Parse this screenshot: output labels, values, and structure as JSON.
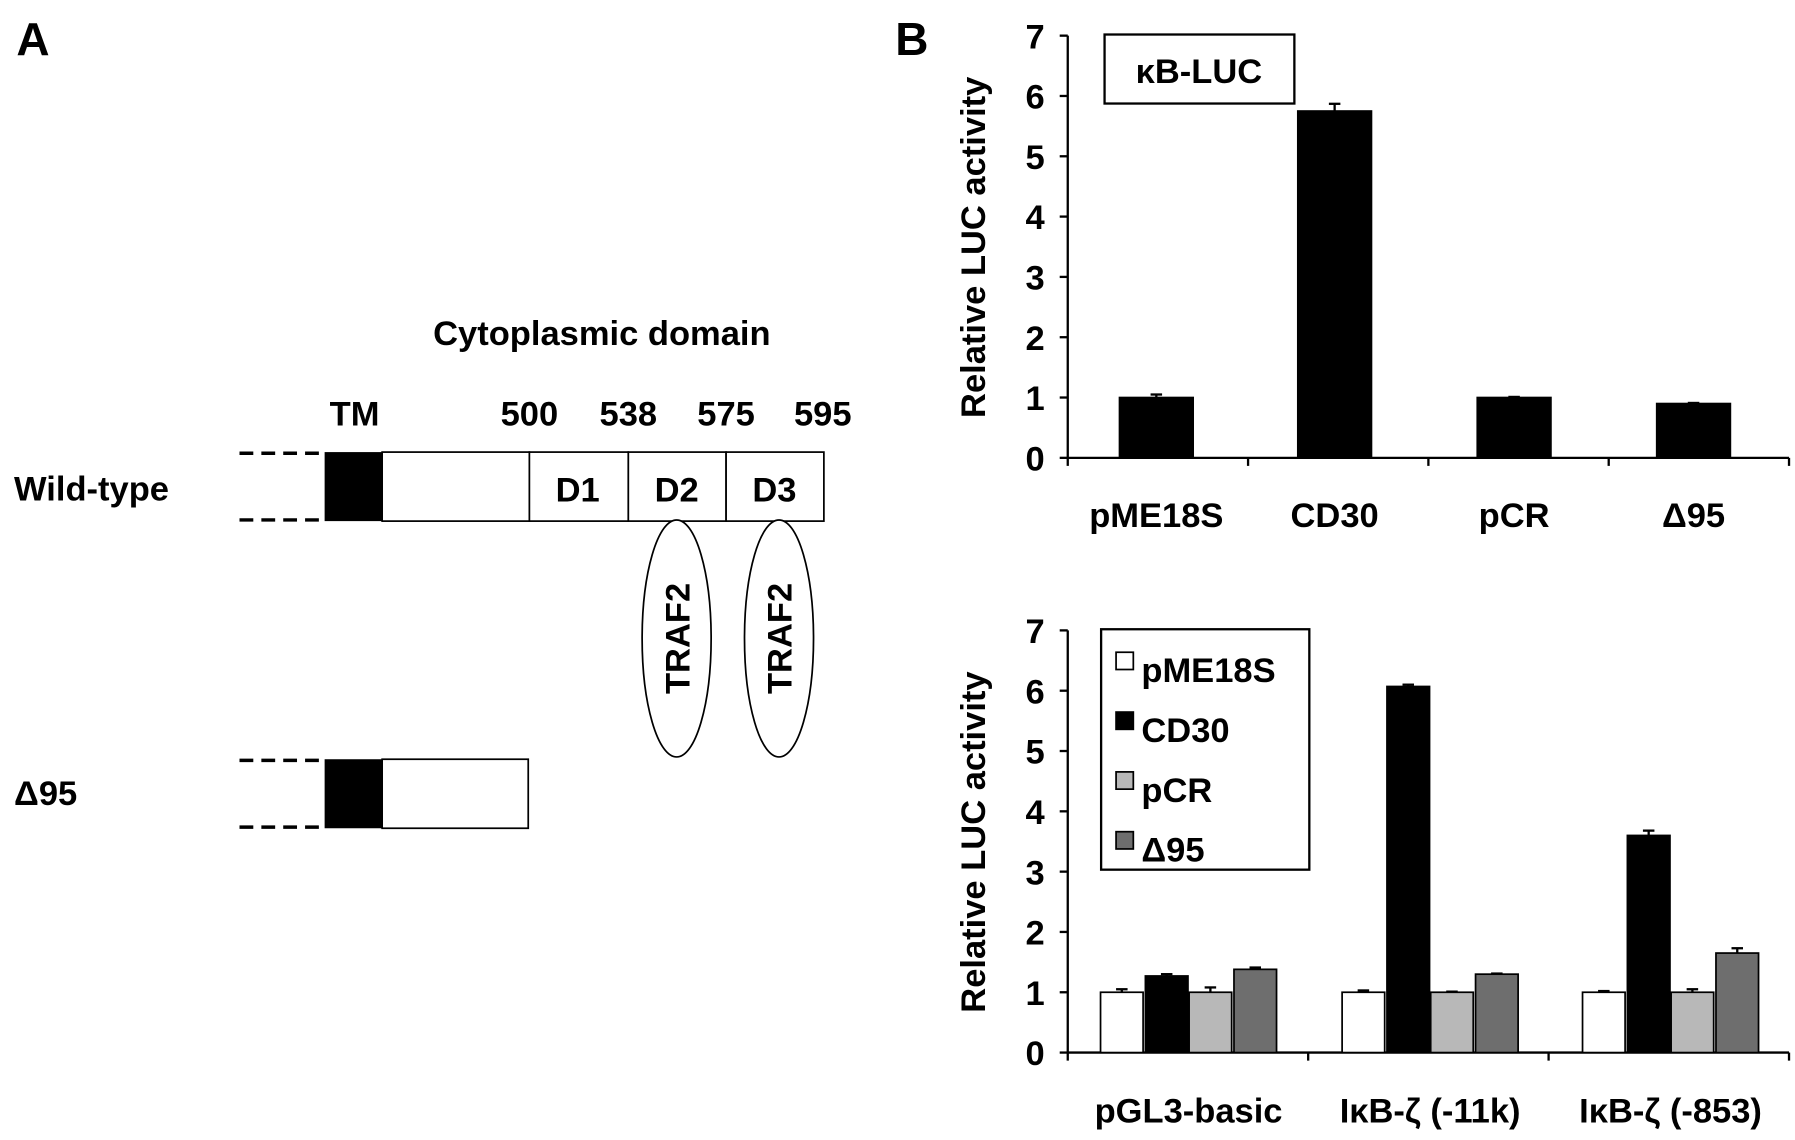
{
  "panel_a": {
    "label": "A",
    "heading": "Cytoplasmic domain",
    "positions": {
      "tm": "TM",
      "p500": "500",
      "p538": "538",
      "p575": "575",
      "p595": "595"
    },
    "wild_type": {
      "label": "Wild-type",
      "domains": [
        "D1",
        "D2",
        "D3"
      ],
      "binders": [
        "TRAF2",
        "TRAF2"
      ]
    },
    "delta95": {
      "label": "Δ95"
    }
  },
  "panel_b": {
    "label": "B"
  },
  "chart_data": [
    {
      "type": "bar",
      "title": "κB-LUC",
      "ylabel": "Relative LUC activity",
      "xlabel": "",
      "ylim": [
        0,
        7
      ],
      "yticks": [
        "0",
        "1",
        "2",
        "3",
        "4",
        "5",
        "6",
        "7"
      ],
      "categories": [
        "pME18S",
        "CD30",
        "pCR",
        "Δ95"
      ],
      "values": [
        1.0,
        5.75,
        1.0,
        0.9
      ],
      "errors": [
        0.05,
        0.12,
        0.01,
        0.01
      ],
      "color": "#000000"
    },
    {
      "type": "bar",
      "ylabel": "Relative LUC activity",
      "xlabel": "",
      "ylim": [
        0,
        7
      ],
      "yticks": [
        "0",
        "1",
        "2",
        "3",
        "4",
        "5",
        "6",
        "7"
      ],
      "categories": [
        "pGL3-basic",
        "IκB-ζ (-11k)",
        "IκB-ζ (-853)"
      ],
      "legend_position": "top-left",
      "series": [
        {
          "name": "pME18S",
          "color": "#ffffff",
          "values": [
            1.0,
            1.0,
            1.0
          ],
          "errors": [
            0.05,
            0.03,
            0.02
          ]
        },
        {
          "name": "CD30",
          "color": "#000000",
          "values": [
            1.27,
            6.07,
            3.6
          ],
          "errors": [
            0.03,
            0.03,
            0.08
          ]
        },
        {
          "name": "pCR",
          "color": "#b8b8b8",
          "values": [
            1.0,
            1.0,
            1.0
          ],
          "errors": [
            0.08,
            0.01,
            0.05
          ]
        },
        {
          "name": "Δ95",
          "color": "#6e6e6e",
          "values": [
            1.38,
            1.3,
            1.65
          ],
          "errors": [
            0.03,
            0.01,
            0.08
          ]
        }
      ]
    }
  ]
}
